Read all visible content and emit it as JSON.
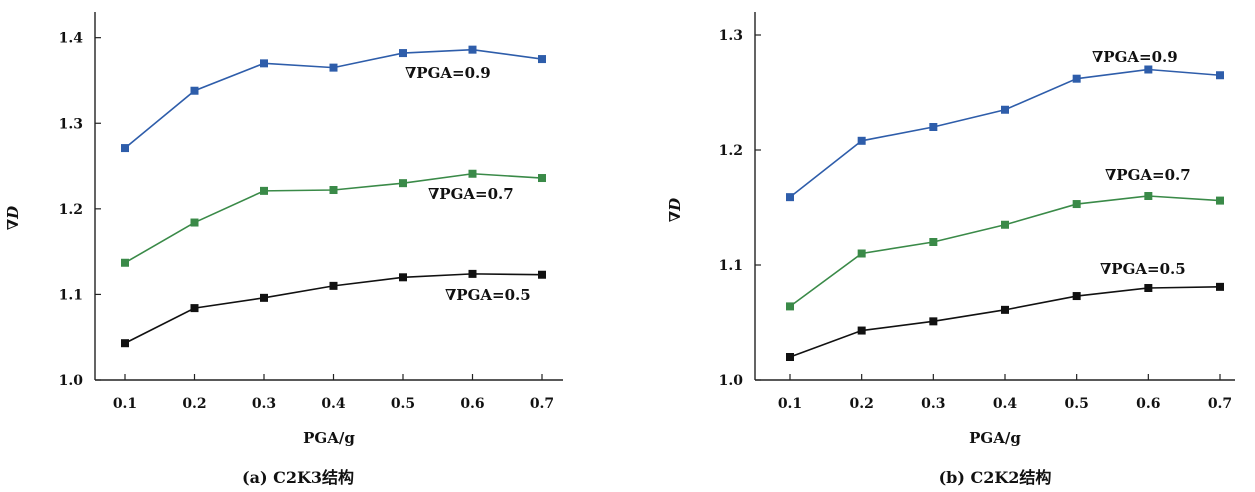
{
  "chart_data": [
    {
      "type": "line",
      "caption": "(a) C2K3结构",
      "xlabel": "PGA/g",
      "ylabel": "∇D",
      "x": [
        0.1,
        0.2,
        0.3,
        0.4,
        0.5,
        0.6,
        0.7
      ],
      "x_tick_labels": [
        "0.1",
        "0.2",
        "0.3",
        "0.4",
        "0.5",
        "0.6",
        "0.7"
      ],
      "y_tick_labels": [
        "1.0",
        "1.1",
        "1.2",
        "1.3",
        "1.4"
      ],
      "ylim": [
        1.0,
        1.43
      ],
      "grid": false,
      "series": [
        {
          "name": "∇PGA=0.9",
          "color": "#2e5daa",
          "values": [
            1.271,
            1.338,
            1.37,
            1.365,
            1.382,
            1.386,
            1.375
          ]
        },
        {
          "name": "∇PGA=0.7",
          "color": "#3a8a48",
          "values": [
            1.137,
            1.184,
            1.221,
            1.222,
            1.23,
            1.241,
            1.236
          ]
        },
        {
          "name": "∇PGA=0.5",
          "color": "#111111",
          "values": [
            1.043,
            1.084,
            1.096,
            1.11,
            1.12,
            1.124,
            1.123
          ]
        }
      ]
    },
    {
      "type": "line",
      "caption": "(b) C2K2结构",
      "xlabel": "PGA/g",
      "ylabel": "∇D",
      "x": [
        0.1,
        0.2,
        0.3,
        0.4,
        0.5,
        0.6,
        0.7
      ],
      "x_tick_labels": [
        "0.1",
        "0.2",
        "0.3",
        "0.4",
        "0.5",
        "0.6",
        "0.7"
      ],
      "y_tick_labels": [
        "1.0",
        "1.1",
        "1.2",
        "1.3"
      ],
      "ylim": [
        1.0,
        1.32
      ],
      "grid": false,
      "series": [
        {
          "name": "∇PGA=0.9",
          "color": "#2e5daa",
          "values": [
            1.159,
            1.208,
            1.22,
            1.235,
            1.262,
            1.27,
            1.265
          ]
        },
        {
          "name": "∇PGA=0.7",
          "color": "#3a8a48",
          "values": [
            1.064,
            1.11,
            1.12,
            1.135,
            1.153,
            1.16,
            1.156
          ]
        },
        {
          "name": "∇PGA=0.5",
          "color": "#111111",
          "values": [
            1.02,
            1.043,
            1.051,
            1.061,
            1.073,
            1.08,
            1.081
          ]
        }
      ]
    }
  ]
}
